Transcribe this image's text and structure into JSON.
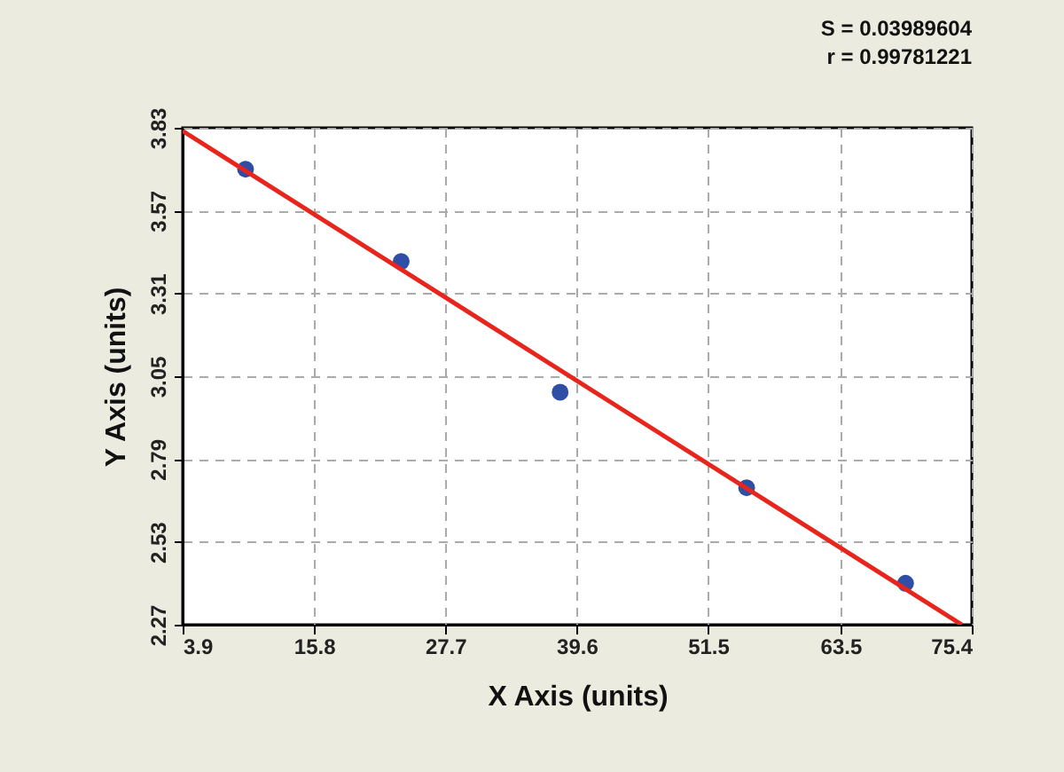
{
  "chart_data": {
    "type": "scatter",
    "xlabel": "X Axis (units)",
    "ylabel": "Y Axis (units)",
    "annotations": [
      "S = 0.03989604",
      "r = 0.99781221"
    ],
    "xlim": [
      3.9,
      75.4
    ],
    "xticks": [
      3.9,
      15.8,
      27.7,
      39.6,
      51.5,
      63.5,
      75.4
    ],
    "ylim": [
      2.27,
      3.83
    ],
    "yticks": [
      2.27,
      2.53,
      2.79,
      3.05,
      3.31,
      3.57,
      3.83
    ],
    "grid": true,
    "series": [
      {
        "marker": "circle",
        "color": "#2f4ea6",
        "x": [
          9.6,
          23.7,
          38.1,
          55.0,
          69.4
        ],
        "values": [
          3.7,
          3.41,
          3.0,
          2.7,
          2.4
        ]
      },
      {
        "type": "line",
        "color": "#e8251c",
        "line_style": "solid",
        "x": [
          3.9,
          74.5
        ],
        "values": [
          3.82,
          2.27
        ]
      }
    ]
  }
}
